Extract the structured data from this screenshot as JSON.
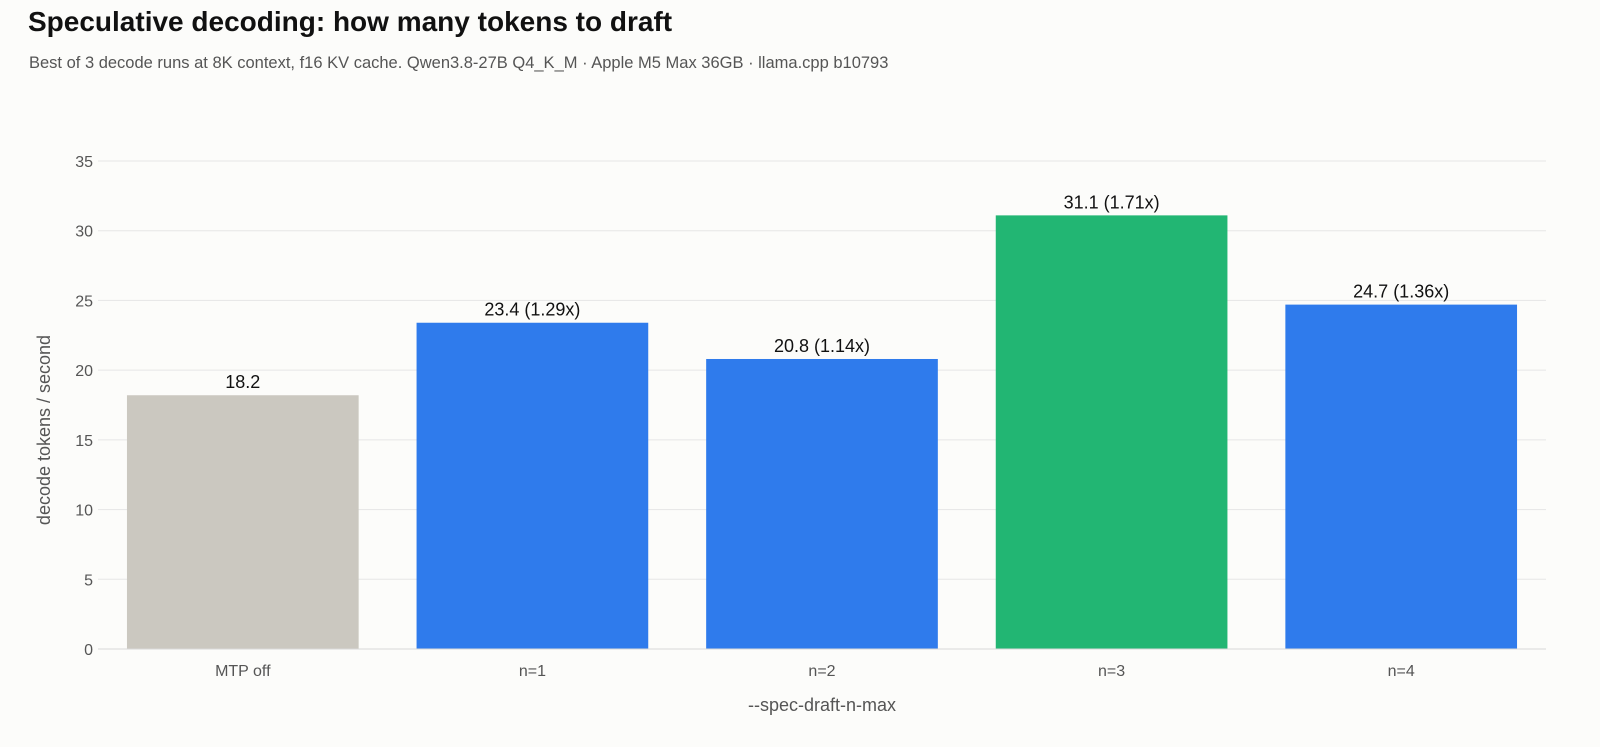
{
  "colors": {
    "baseline": "#cbc8c0",
    "normal": "#2f7bec",
    "best": "#22b673",
    "grid": "#e6e6e6",
    "axis_line": "#d8d8d8",
    "background": "#fcfcfa"
  },
  "chart_data": {
    "type": "bar",
    "title": "Speculative decoding: how many tokens to draft",
    "subtitle": "Best of 3 decode runs at 8K context, f16 KV cache. Qwen3.8-27B Q4_K_M · Apple M5 Max 36GB · llama.cpp b10793",
    "xlabel": "--spec-draft-n-max",
    "ylabel": "decode tokens / second",
    "ylim": [
      0,
      35
    ],
    "yticks": [
      0,
      5,
      10,
      15,
      20,
      25,
      30,
      35
    ],
    "grid": true,
    "categories": [
      "MTP off",
      "n=1",
      "n=2",
      "n=3",
      "n=4"
    ],
    "values": [
      18.2,
      23.4,
      20.8,
      31.1,
      24.7
    ],
    "bar_labels": [
      "18.2",
      "23.4  (1.29x)",
      "20.8  (1.14x)",
      "31.1  (1.71x)",
      "24.7  (1.36x)"
    ],
    "bar_roles": [
      "baseline",
      "normal",
      "normal",
      "best",
      "normal"
    ]
  }
}
